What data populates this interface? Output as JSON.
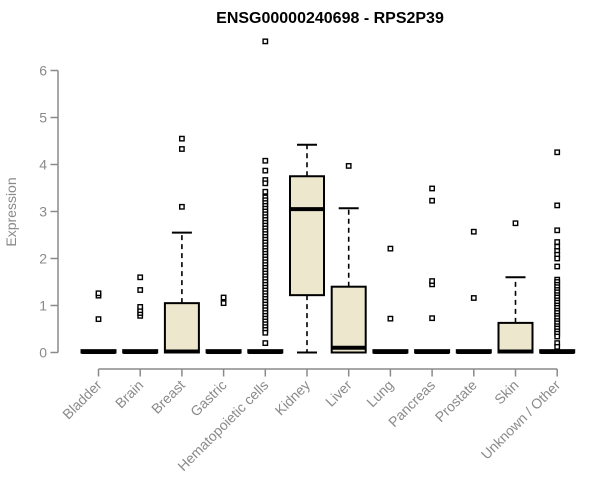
{
  "chart_data": {
    "type": "boxplot",
    "title": "ENSG00000240698 - RPS2P39",
    "ylabel": "Expression",
    "xlabel": "",
    "ylim": [
      0,
      6
    ],
    "yticks": [
      0,
      1,
      2,
      3,
      4,
      5,
      6
    ],
    "grid": false,
    "legend": false,
    "categories": [
      "Bladder",
      "Brain",
      "Breast",
      "Gastric",
      "Hematopoietic cells",
      "Kidney",
      "Liver",
      "Lung",
      "Pancreas",
      "Prostate",
      "Skin",
      "Unknown / Other"
    ],
    "series": [
      {
        "category": "Bladder",
        "q1": 0,
        "median": 0.01,
        "q3": 0.05,
        "whisker_low": 0,
        "whisker_high": 0.05,
        "outliers": [
          0.71,
          1.21,
          1.26
        ]
      },
      {
        "category": "Brain",
        "q1": 0,
        "median": 0.01,
        "q3": 0.05,
        "whisker_low": 0,
        "whisker_high": 0.05,
        "outliers": [
          0.78,
          0.84,
          0.9,
          0.97,
          1.33,
          1.6
        ]
      },
      {
        "category": "Breast",
        "q1": 0,
        "median": 0.02,
        "q3": 1.05,
        "whisker_low": 0,
        "whisker_high": 2.55,
        "outliers": [
          3.1,
          4.33,
          4.55
        ]
      },
      {
        "category": "Gastric",
        "q1": 0,
        "median": 0.01,
        "q3": 0.05,
        "whisker_low": 0,
        "whisker_high": 0.05,
        "outliers": [
          1.05,
          1.17
        ]
      },
      {
        "category": "Hematopoietic cells",
        "q1": 0,
        "median": 0.01,
        "q3": 0.05,
        "whisker_low": 0,
        "whisker_high": 0.05,
        "outliers": [
          6.62,
          4.08,
          3.87,
          3.67,
          3.6,
          3.42,
          3.3,
          3.24,
          3.18,
          3.12,
          3.06,
          3.0,
          2.94,
          2.88,
          2.82,
          2.76,
          2.7,
          2.64,
          2.58,
          2.52,
          2.46,
          2.4,
          2.34,
          2.28,
          2.22,
          2.16,
          2.1,
          2.04,
          1.98,
          1.92,
          1.86,
          1.8,
          1.74,
          1.68,
          1.62,
          1.56,
          1.5,
          1.44,
          1.38,
          1.32,
          1.26,
          1.2,
          1.14,
          1.08,
          1.02,
          0.96,
          0.9,
          0.84,
          0.78,
          0.72,
          0.66,
          0.6,
          0.54,
          0.48,
          0.42,
          0.2
        ]
      },
      {
        "category": "Kidney",
        "q1": 1.22,
        "median": 3.05,
        "q3": 3.75,
        "whisker_low": 0,
        "whisker_high": 4.42,
        "outliers": []
      },
      {
        "category": "Liver",
        "q1": 0,
        "median": 0.1,
        "q3": 1.4,
        "whisker_low": 0,
        "whisker_high": 3.07,
        "outliers": [
          3.97
        ]
      },
      {
        "category": "Lung",
        "q1": 0,
        "median": 0.01,
        "q3": 0.05,
        "whisker_low": 0,
        "whisker_high": 0.05,
        "outliers": [
          0.72,
          2.21
        ]
      },
      {
        "category": "Pancreas",
        "q1": 0,
        "median": 0.01,
        "q3": 0.05,
        "whisker_low": 0,
        "whisker_high": 0.05,
        "outliers": [
          0.73,
          1.45,
          1.52,
          3.23,
          3.49
        ]
      },
      {
        "category": "Prostate",
        "q1": 0,
        "median": 0.01,
        "q3": 0.05,
        "whisker_low": 0,
        "whisker_high": 0.05,
        "outliers": [
          1.16,
          2.57
        ]
      },
      {
        "category": "Skin",
        "q1": 0,
        "median": 0.02,
        "q3": 0.63,
        "whisker_low": 0,
        "whisker_high": 1.6,
        "outliers": [
          2.75
        ]
      },
      {
        "category": "Unknown / Other",
        "q1": 0,
        "median": 0.01,
        "q3": 0.05,
        "whisker_low": 0,
        "whisker_high": 0.05,
        "outliers": [
          4.26,
          3.13,
          2.6,
          2.35,
          2.25,
          2.16,
          2.08,
          2.0,
          1.83,
          1.55,
          1.5,
          1.44,
          1.39,
          1.33,
          1.28,
          1.22,
          1.17,
          1.11,
          1.06,
          1.0,
          0.95,
          0.89,
          0.84,
          0.78,
          0.73,
          0.67,
          0.62,
          0.56,
          0.51,
          0.45,
          0.4,
          0.34,
          0.2,
          0.12
        ]
      }
    ],
    "colors": {
      "box_fill": "#ece7cd",
      "box_stroke": "#000000",
      "median": "#000000",
      "whisker": "#000000",
      "outlier_stroke": "#000000",
      "outlier_fill": "#ffffff",
      "axis": "#8a8a8a",
      "title": "#000000",
      "background": "#ffffff"
    }
  }
}
